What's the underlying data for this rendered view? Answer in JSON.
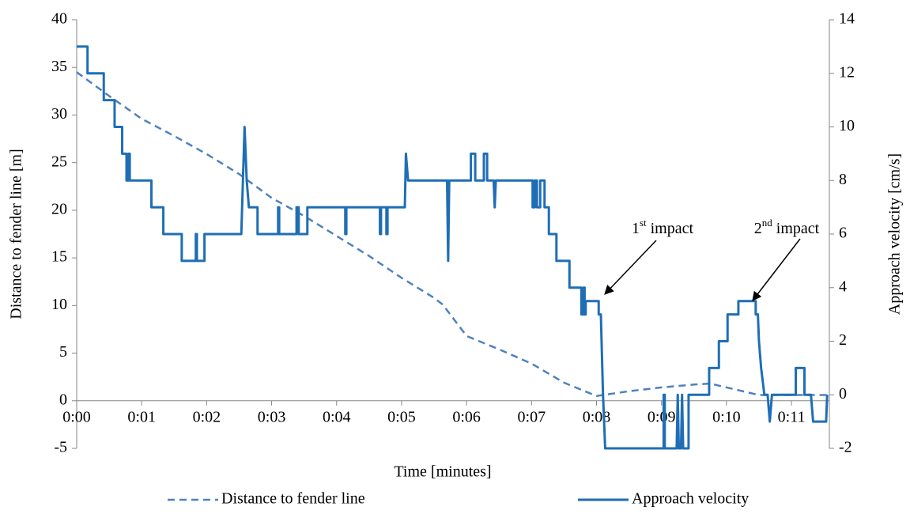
{
  "chart_data": {
    "type": "line",
    "xlabel": "Time [minutes]",
    "ylabel": "Distance to fender line [m]",
    "y2label": "Approach velocity [cm/s]",
    "xlim": [
      0,
      695
    ],
    "xticks": [
      {
        "value": 0,
        "label": "0:00"
      },
      {
        "value": 60,
        "label": "0:01"
      },
      {
        "value": 120,
        "label": "0:02"
      },
      {
        "value": 180,
        "label": "0:03"
      },
      {
        "value": 240,
        "label": "0:04"
      },
      {
        "value": 300,
        "label": "0:05"
      },
      {
        "value": 360,
        "label": "0:06"
      },
      {
        "value": 420,
        "label": "0:07"
      },
      {
        "value": 480,
        "label": "0:08"
      },
      {
        "value": 540,
        "label": "0:09"
      },
      {
        "value": 600,
        "label": "0:10"
      },
      {
        "value": 660,
        "label": "0:11"
      }
    ],
    "ylim": [
      -5,
      40
    ],
    "yticks": [
      -5,
      0,
      5,
      10,
      15,
      20,
      25,
      30,
      35,
      40
    ],
    "y2lim": [
      -2,
      14
    ],
    "y2ticks": [
      -2,
      0,
      2,
      4,
      6,
      8,
      10,
      12,
      14
    ],
    "legend": "bottom",
    "annotations": [
      {
        "label": "1",
        "superscript": "st",
        "text": " impact"
      },
      {
        "label": "2",
        "superscript": "nd",
        "text": " impact"
      }
    ],
    "series": [
      {
        "name": "Distance to fender line",
        "color": "#4f81bd",
        "dashed": true,
        "x": [
          0,
          30,
          60,
          90,
          120,
          150,
          180,
          210,
          240,
          270,
          300,
          330,
          338,
          360,
          390,
          420,
          450,
          480,
          510,
          540,
          570,
          585,
          600,
          630,
          660,
          695
        ],
        "values": [
          34.5,
          32,
          29.6,
          27.8,
          25.9,
          23.8,
          21.3,
          19.4,
          17.3,
          15.2,
          12.9,
          10.8,
          10.1,
          6.8,
          5.4,
          3.9,
          1.9,
          0.5,
          1.0,
          1.4,
          1.7,
          1.8,
          1.4,
          0.6,
          0.6,
          0.6
        ]
      },
      {
        "name": "Approach velocity",
        "color": "#1f6eb5",
        "dashed": false,
        "axis": "y2",
        "x": [
          0,
          10,
          10,
          25,
          25,
          35,
          35,
          42,
          42,
          46,
          46,
          48,
          48,
          49,
          49,
          69,
          69,
          80,
          80,
          97,
          97,
          110,
          110,
          111,
          111,
          118,
          118,
          152,
          155,
          157,
          159,
          167,
          167,
          186,
          186,
          187,
          187,
          203,
          203,
          205,
          205,
          213,
          213,
          248,
          248,
          249,
          249,
          280,
          280,
          281,
          281,
          286,
          286,
          287,
          287,
          303,
          304,
          306,
          342,
          343,
          344,
          364,
          364,
          368,
          368,
          376,
          376,
          379,
          379,
          385,
          386,
          387,
          421,
          421,
          423,
          423,
          425,
          425,
          428,
          428,
          432,
          432,
          436,
          436,
          443,
          443,
          455,
          455,
          466,
          466,
          468,
          468,
          469,
          469,
          470,
          470,
          482,
          482,
          484,
          486,
          488,
          542,
          542,
          543,
          543,
          554,
          555,
          556,
          558,
          559,
          560,
          565,
          565,
          584,
          584,
          593,
          593,
          601,
          601,
          611,
          611,
          627,
          627,
          629,
          630,
          632,
          635,
          638,
          640,
          642,
          664,
          664,
          672,
          672,
          678,
          680,
          692,
          693
        ],
        "values": [
          13,
          13,
          12,
          12,
          11,
          11,
          10,
          10,
          9,
          9,
          8,
          8,
          9,
          9,
          8,
          8,
          7,
          7,
          6,
          6,
          5,
          5,
          6,
          6,
          5,
          5,
          6,
          6,
          10,
          8,
          7,
          7,
          6,
          6,
          7,
          7,
          6,
          6,
          7,
          7,
          6,
          6,
          7,
          7,
          6,
          6,
          7,
          7,
          6,
          6,
          7,
          7,
          6,
          6,
          7,
          7,
          9,
          8,
          8,
          5,
          8,
          8,
          9,
          9,
          8,
          8,
          9,
          9,
          8,
          8,
          7,
          8,
          8,
          7,
          7,
          8,
          8,
          7,
          7,
          8,
          8,
          7,
          7,
          6,
          6,
          5,
          5,
          4,
          4,
          3,
          3,
          4,
          4,
          3,
          3,
          3.5,
          3.5,
          3,
          3,
          0,
          -2,
          -2,
          0,
          0,
          -2,
          -2,
          0,
          -2,
          -2,
          0,
          -2,
          -2,
          0,
          0,
          1,
          1,
          2,
          2,
          3,
          3,
          3.5,
          3.5,
          3,
          3,
          2,
          1,
          0,
          0,
          -1,
          0,
          0,
          1,
          1,
          0,
          0,
          -1,
          -1,
          0
        ]
      }
    ]
  }
}
